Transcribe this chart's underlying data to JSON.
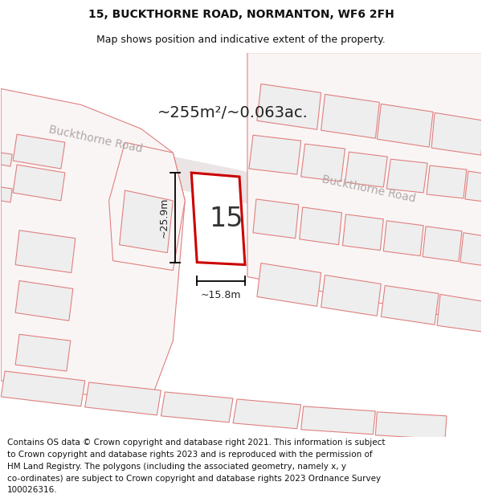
{
  "title_line1": "15, BUCKTHORNE ROAD, NORMANTON, WF6 2FH",
  "title_line2": "Map shows position and indicative extent of the property.",
  "footer_text": "Contains OS data © Crown copyright and database right 2021. This information is subject to Crown copyright and database rights 2023 and is reproduced with the permission of HM Land Registry. The polygons (including the associated geometry, namely x, y co-ordinates) are subject to Crown copyright and database rights 2023 Ordnance Survey 100026316.",
  "area_label": "~255m²/~0.063ac.",
  "width_label": "~15.8m",
  "height_label": "~25.9m",
  "number_label": "15",
  "road_label_left": "Buckthorne Road",
  "road_label_right": "Buckthorne Road",
  "bg_color": "#ffffff",
  "map_bg": "#fdf8f8",
  "road_fill": "#ede8e8",
  "bldg_fill": "#eeeeee",
  "bldg_edge": "#e08080",
  "highlight_fill": "#ffffff",
  "highlight_edge": "#cc0000",
  "title_fontsize": 10,
  "subtitle_fontsize": 9,
  "footer_fontsize": 7.5,
  "area_fontsize": 14,
  "number_fontsize": 24,
  "road_fontsize": 10,
  "dim_fontsize": 9
}
